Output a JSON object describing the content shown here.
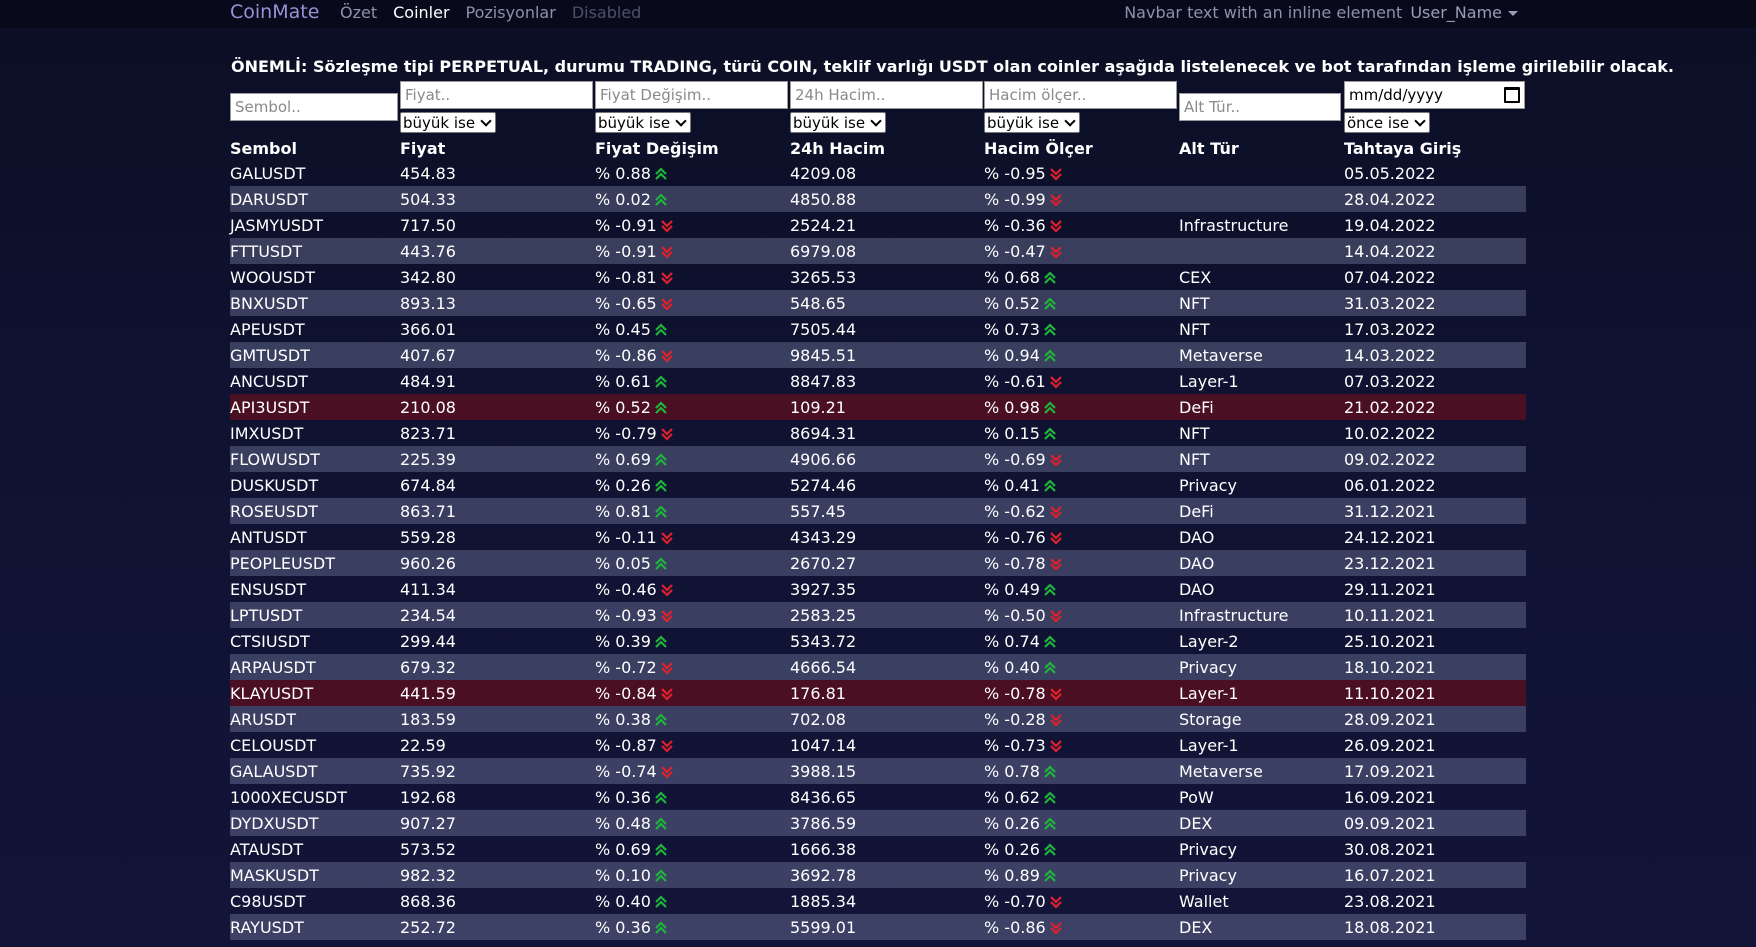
{
  "navbar": {
    "brand": "CoinMate",
    "links": [
      {
        "label": "Özet",
        "state": "normal"
      },
      {
        "label": "Coinler",
        "state": "active"
      },
      {
        "label": "Pozisyonlar",
        "state": "normal"
      },
      {
        "label": "Disabled",
        "state": "disabled"
      }
    ],
    "right_text": "Navbar text with an inline element",
    "user": "User_Name"
  },
  "notice": "ÖNEMLİ: Sözleşme tipi PERPETUAL, durumu TRADING, türü COIN, teklif varlığı USDT olan coinler aşağıda listelenecek ve bot tarafından işleme girilebilir olacak.",
  "filters": {
    "symbol_placeholder": "Sembol..",
    "price_placeholder": "Fiyat..",
    "price_op": "büyük ise",
    "change_placeholder": "Fiyat Değişim..",
    "change_op": "büyük ise",
    "volume_placeholder": "24h Hacim..",
    "volume_op": "büyük ise",
    "vratio_placeholder": "Hacim ölçer..",
    "vratio_op": "büyük ise",
    "subtype_placeholder": "Alt Tür..",
    "date_value": "mm/dd/yyyy",
    "date_op": "önce ise"
  },
  "colors": {
    "up": "#1fb43a",
    "down": "#e0202c",
    "danger_row": "#4a0f22",
    "accent": "#9b8fd6"
  },
  "table": {
    "headers": [
      "Sembol",
      "Fiyat",
      "Fiyat Değişim",
      "24h Hacim",
      "Hacim Ölçer",
      "Alt Tür",
      "Tahtaya Giriş"
    ],
    "rows": [
      {
        "symbol": "GALUSDT",
        "price": "454.83",
        "change": "% 0.88",
        "change_dir": "up",
        "volume": "4209.08",
        "vratio": "% -0.95",
        "vratio_dir": "down",
        "subtype": "",
        "date": "05.05.2022",
        "highlight": false
      },
      {
        "symbol": "DARUSDT",
        "price": "504.33",
        "change": "% 0.02",
        "change_dir": "up",
        "volume": "4850.88",
        "vratio": "% -0.99",
        "vratio_dir": "down",
        "subtype": "",
        "date": "28.04.2022",
        "highlight": false
      },
      {
        "symbol": "JASMYUSDT",
        "price": "717.50",
        "change": "% -0.91",
        "change_dir": "down",
        "volume": "2524.21",
        "vratio": "% -0.36",
        "vratio_dir": "down",
        "subtype": "Infrastructure",
        "date": "19.04.2022",
        "highlight": false
      },
      {
        "symbol": "FTTUSDT",
        "price": "443.76",
        "change": "% -0.91",
        "change_dir": "down",
        "volume": "6979.08",
        "vratio": "% -0.47",
        "vratio_dir": "down",
        "subtype": "",
        "date": "14.04.2022",
        "highlight": false
      },
      {
        "symbol": "WOOUSDT",
        "price": "342.80",
        "change": "% -0.81",
        "change_dir": "down",
        "volume": "3265.53",
        "vratio": "% 0.68",
        "vratio_dir": "up",
        "subtype": "CEX",
        "date": "07.04.2022",
        "highlight": false
      },
      {
        "symbol": "BNXUSDT",
        "price": "893.13",
        "change": "% -0.65",
        "change_dir": "down",
        "volume": "548.65",
        "vratio": "% 0.52",
        "vratio_dir": "up",
        "subtype": "NFT",
        "date": "31.03.2022",
        "highlight": false
      },
      {
        "symbol": "APEUSDT",
        "price": "366.01",
        "change": "% 0.45",
        "change_dir": "up",
        "volume": "7505.44",
        "vratio": "% 0.73",
        "vratio_dir": "up",
        "subtype": "NFT",
        "date": "17.03.2022",
        "highlight": false
      },
      {
        "symbol": "GMTUSDT",
        "price": "407.67",
        "change": "% -0.86",
        "change_dir": "down",
        "volume": "9845.51",
        "vratio": "% 0.94",
        "vratio_dir": "up",
        "subtype": "Metaverse",
        "date": "14.03.2022",
        "highlight": false
      },
      {
        "symbol": "ANCUSDT",
        "price": "484.91",
        "change": "% 0.61",
        "change_dir": "up",
        "volume": "8847.83",
        "vratio": "% -0.61",
        "vratio_dir": "down",
        "subtype": "Layer-1",
        "date": "07.03.2022",
        "highlight": false
      },
      {
        "symbol": "API3USDT",
        "price": "210.08",
        "change": "% 0.52",
        "change_dir": "up",
        "volume": "109.21",
        "vratio": "% 0.98",
        "vratio_dir": "up",
        "subtype": "DeFi",
        "date": "21.02.2022",
        "highlight": true
      },
      {
        "symbol": "IMXUSDT",
        "price": "823.71",
        "change": "% -0.79",
        "change_dir": "down",
        "volume": "8694.31",
        "vratio": "% 0.15",
        "vratio_dir": "up",
        "subtype": "NFT",
        "date": "10.02.2022",
        "highlight": false
      },
      {
        "symbol": "FLOWUSDT",
        "price": "225.39",
        "change": "% 0.69",
        "change_dir": "up",
        "volume": "4906.66",
        "vratio": "% -0.69",
        "vratio_dir": "down",
        "subtype": "NFT",
        "date": "09.02.2022",
        "highlight": false
      },
      {
        "symbol": "DUSKUSDT",
        "price": "674.84",
        "change": "% 0.26",
        "change_dir": "up",
        "volume": "5274.46",
        "vratio": "% 0.41",
        "vratio_dir": "up",
        "subtype": "Privacy",
        "date": "06.01.2022",
        "highlight": false
      },
      {
        "symbol": "ROSEUSDT",
        "price": "863.71",
        "change": "% 0.81",
        "change_dir": "up",
        "volume": "557.45",
        "vratio": "% -0.62",
        "vratio_dir": "down",
        "subtype": "DeFi",
        "date": "31.12.2021",
        "highlight": false
      },
      {
        "symbol": "ANTUSDT",
        "price": "559.28",
        "change": "% -0.11",
        "change_dir": "down",
        "volume": "4343.29",
        "vratio": "% -0.76",
        "vratio_dir": "down",
        "subtype": "DAO",
        "date": "24.12.2021",
        "highlight": false
      },
      {
        "symbol": "PEOPLEUSDT",
        "price": "960.26",
        "change": "% 0.05",
        "change_dir": "up",
        "volume": "2670.27",
        "vratio": "% -0.78",
        "vratio_dir": "down",
        "subtype": "DAO",
        "date": "23.12.2021",
        "highlight": false
      },
      {
        "symbol": "ENSUSDT",
        "price": "411.34",
        "change": "% -0.46",
        "change_dir": "down",
        "volume": "3927.35",
        "vratio": "% 0.49",
        "vratio_dir": "up",
        "subtype": "DAO",
        "date": "29.11.2021",
        "highlight": false
      },
      {
        "symbol": "LPTUSDT",
        "price": "234.54",
        "change": "% -0.93",
        "change_dir": "down",
        "volume": "2583.25",
        "vratio": "% -0.50",
        "vratio_dir": "down",
        "subtype": "Infrastructure",
        "date": "10.11.2021",
        "highlight": false
      },
      {
        "symbol": "CTSIUSDT",
        "price": "299.44",
        "change": "% 0.39",
        "change_dir": "up",
        "volume": "5343.72",
        "vratio": "% 0.74",
        "vratio_dir": "up",
        "subtype": "Layer-2",
        "date": "25.10.2021",
        "highlight": false
      },
      {
        "symbol": "ARPAUSDT",
        "price": "679.32",
        "change": "% -0.72",
        "change_dir": "down",
        "volume": "4666.54",
        "vratio": "% 0.40",
        "vratio_dir": "up",
        "subtype": "Privacy",
        "date": "18.10.2021",
        "highlight": false
      },
      {
        "symbol": "KLAYUSDT",
        "price": "441.59",
        "change": "% -0.84",
        "change_dir": "down",
        "volume": "176.81",
        "vratio": "% -0.78",
        "vratio_dir": "down",
        "subtype": "Layer-1",
        "date": "11.10.2021",
        "highlight": true
      },
      {
        "symbol": "ARUSDT",
        "price": "183.59",
        "change": "% 0.38",
        "change_dir": "up",
        "volume": "702.08",
        "vratio": "% -0.28",
        "vratio_dir": "down",
        "subtype": "Storage",
        "date": "28.09.2021",
        "highlight": false
      },
      {
        "symbol": "CELOUSDT",
        "price": "22.59",
        "change": "% -0.87",
        "change_dir": "down",
        "volume": "1047.14",
        "vratio": "% -0.73",
        "vratio_dir": "down",
        "subtype": "Layer-1",
        "date": "26.09.2021",
        "highlight": false
      },
      {
        "symbol": "GALAUSDT",
        "price": "735.92",
        "change": "% -0.74",
        "change_dir": "down",
        "volume": "3988.15",
        "vratio": "% 0.78",
        "vratio_dir": "up",
        "subtype": "Metaverse",
        "date": "17.09.2021",
        "highlight": false
      },
      {
        "symbol": "1000XECUSDT",
        "price": "192.68",
        "change": "% 0.36",
        "change_dir": "up",
        "volume": "8436.65",
        "vratio": "% 0.62",
        "vratio_dir": "up",
        "subtype": "PoW",
        "date": "16.09.2021",
        "highlight": false
      },
      {
        "symbol": "DYDXUSDT",
        "price": "907.27",
        "change": "% 0.48",
        "change_dir": "up",
        "volume": "3786.59",
        "vratio": "% 0.26",
        "vratio_dir": "up",
        "subtype": "DEX",
        "date": "09.09.2021",
        "highlight": false
      },
      {
        "symbol": "ATAUSDT",
        "price": "573.52",
        "change": "% 0.69",
        "change_dir": "up",
        "volume": "1666.38",
        "vratio": "% 0.26",
        "vratio_dir": "up",
        "subtype": "Privacy",
        "date": "30.08.2021",
        "highlight": false
      },
      {
        "symbol": "MASKUSDT",
        "price": "982.32",
        "change": "% 0.10",
        "change_dir": "up",
        "volume": "3692.78",
        "vratio": "% 0.89",
        "vratio_dir": "up",
        "subtype": "Privacy",
        "date": "16.07.2021",
        "highlight": false
      },
      {
        "symbol": "C98USDT",
        "price": "868.36",
        "change": "% 0.40",
        "change_dir": "up",
        "volume": "1885.34",
        "vratio": "% -0.70",
        "vratio_dir": "down",
        "subtype": "Wallet",
        "date": "23.08.2021",
        "highlight": false
      },
      {
        "symbol": "RAYUSDT",
        "price": "252.72",
        "change": "% 0.36",
        "change_dir": "up",
        "volume": "5599.01",
        "vratio": "% -0.86",
        "vratio_dir": "down",
        "subtype": "DEX",
        "date": "18.08.2021",
        "highlight": false
      }
    ]
  }
}
